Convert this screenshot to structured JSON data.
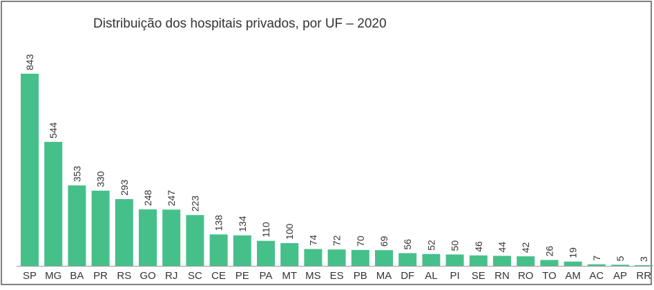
{
  "chart_data": {
    "type": "bar",
    "title": "Distribuição dos hospitais privados, por UF – 2020",
    "categories": [
      "SP",
      "MG",
      "BA",
      "PR",
      "RS",
      "GO",
      "RJ",
      "SC",
      "CE",
      "PE",
      "PA",
      "MT",
      "MS",
      "ES",
      "PB",
      "MA",
      "DF",
      "AL",
      "PI",
      "SE",
      "RN",
      "RO",
      "TO",
      "AM",
      "AC",
      "AP",
      "RR"
    ],
    "values": [
      843,
      544,
      353,
      330,
      293,
      248,
      247,
      223,
      138,
      134,
      110,
      100,
      74,
      72,
      70,
      69,
      56,
      52,
      50,
      46,
      44,
      42,
      26,
      19,
      7,
      5,
      3
    ],
    "color": "#46c08a"
  }
}
